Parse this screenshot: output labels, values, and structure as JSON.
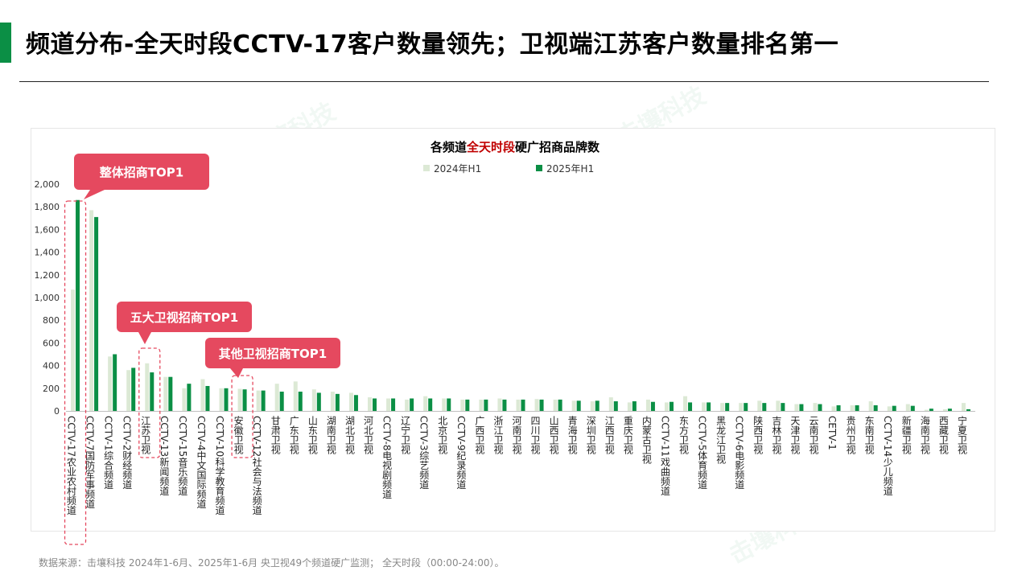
{
  "header": {
    "title": "频道分布-全天时段CCTV-17客户数量领先；卫视端江苏客户数量排名第一",
    "accent_color": "#0b8f45"
  },
  "chart": {
    "title_parts": [
      "各频道",
      "全天时段",
      "硬广招商品牌数"
    ],
    "title_highlight_color": "#c00000"
  },
  "callouts": {
    "c1": "整体招商TOP1",
    "c2": "五大卫视招商TOP1",
    "c3": "其他卫视招商TOP1",
    "color": "#e5495f"
  },
  "watermark": "击壤科技",
  "footer": {
    "source": "数据来源：击壤科技  2024年1-6月、2025年1-6月 央卫视49个频道硬广监测； 全天时段（00:00-24:00）。"
  },
  "chart_data": {
    "type": "bar",
    "ylim": [
      0,
      2000
    ],
    "yticks": [
      "0",
      "200",
      "400",
      "600",
      "800",
      "1,000",
      "1,200",
      "1,400",
      "1,600",
      "1,800",
      "2,000"
    ],
    "legend_position": "top-center",
    "categories": [
      "CCTV-17农业农村频道",
      "CCTV-7国防军事频道",
      "CCTV-1综合频道",
      "CCTV-2财经频道",
      "江苏卫视",
      "CCTV-13新闻频道",
      "CCTV-15音乐频道",
      "CCTV-4中文国际频道",
      "CCTV-10科学教育频道",
      "安徽卫视",
      "CCTV-12社会与法频道",
      "甘肃卫视",
      "广东卫视",
      "山东卫视",
      "湖南卫视",
      "湖北卫视",
      "河北卫视",
      "CCTV-8电视剧频道",
      "辽宁卫视",
      "CCTV-3综艺频道",
      "北京卫视",
      "CCTV-9纪录频道",
      "广西卫视",
      "浙江卫视",
      "河南卫视",
      "四川卫视",
      "山西卫视",
      "青海卫视",
      "深圳卫视",
      "江西卫视",
      "重庆卫视",
      "内蒙古卫视",
      "CCTV-11戏曲频道",
      "东方卫视",
      "CCTV-5体育频道",
      "黑龙江卫视",
      "CCTV-6电影频道",
      "陕西卫视",
      "吉林卫视",
      "天津卫视",
      "云南卫视",
      "CETV-1",
      "贵州卫视",
      "东南卫视",
      "CCTV-14少儿频道",
      "新疆卫视",
      "海南卫视",
      "西藏卫视",
      "宁夏卫视"
    ],
    "series": [
      {
        "name": "2024年H1",
        "color": "#dce9d5",
        "values": [
          1070,
          1770,
          480,
          360,
          420,
          300,
          200,
          280,
          200,
          195,
          180,
          240,
          260,
          190,
          170,
          160,
          120,
          110,
          100,
          130,
          110,
          100,
          100,
          110,
          100,
          105,
          100,
          90,
          85,
          120,
          75,
          100,
          75,
          130,
          75,
          70,
          70,
          90,
          90,
          60,
          70,
          40,
          50,
          85,
          40,
          60,
          10,
          15,
          70
        ]
      },
      {
        "name": "2025年H1",
        "color": "#0b8f45",
        "values": [
          1860,
          1710,
          500,
          380,
          340,
          300,
          240,
          220,
          200,
          190,
          180,
          170,
          170,
          160,
          150,
          140,
          110,
          110,
          110,
          110,
          110,
          100,
          100,
          100,
          100,
          100,
          100,
          90,
          90,
          85,
          85,
          80,
          80,
          75,
          75,
          70,
          70,
          70,
          70,
          60,
          60,
          50,
          50,
          50,
          45,
          45,
          20,
          20,
          15
        ]
      }
    ]
  }
}
